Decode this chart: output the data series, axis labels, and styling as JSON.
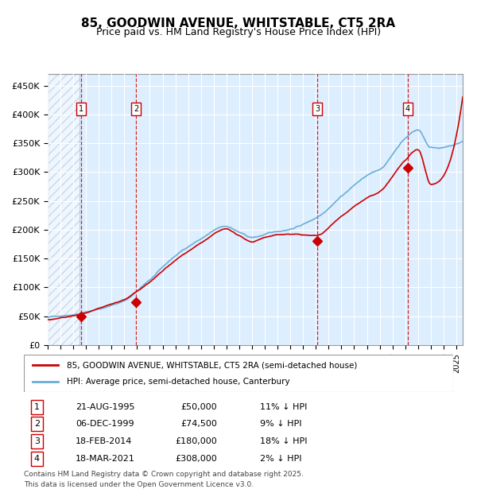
{
  "title": "85, GOODWIN AVENUE, WHITSTABLE, CT5 2RA",
  "subtitle": "Price paid vs. HM Land Registry's House Price Index (HPI)",
  "legend_line1": "85, GOODWIN AVENUE, WHITSTABLE, CT5 2RA (semi-detached house)",
  "legend_line2": "HPI: Average price, semi-detached house, Canterbury",
  "footer1": "Contains HM Land Registry data © Crown copyright and database right 2025.",
  "footer2": "This data is licensed under the Open Government Licence v3.0.",
  "sales": [
    {
      "num": 1,
      "date": "21-AUG-1995",
      "price": 50000,
      "pct": "11% ↓ HPI",
      "year": 1995.64
    },
    {
      "num": 2,
      "date": "06-DEC-1999",
      "price": 74500,
      "pct": "9% ↓ HPI",
      "year": 1999.93
    },
    {
      "num": 3,
      "date": "18-FEB-2014",
      "price": 180000,
      "pct": "18% ↓ HPI",
      "year": 2014.13
    },
    {
      "num": 4,
      "date": "18-MAR-2021",
      "price": 308000,
      "pct": "2% ↓ HPI",
      "year": 2021.21
    }
  ],
  "hpi_color": "#6baed6",
  "price_color": "#cc0000",
  "marker_color": "#cc0000",
  "dashed_color": "#cc0000",
  "bg_color": "#ddeeff",
  "hatch_color": "#aabbcc",
  "grid_color": "#ffffff",
  "ylim": [
    0,
    470000
  ],
  "xlim_start": 1993.0,
  "xlim_end": 2025.5
}
